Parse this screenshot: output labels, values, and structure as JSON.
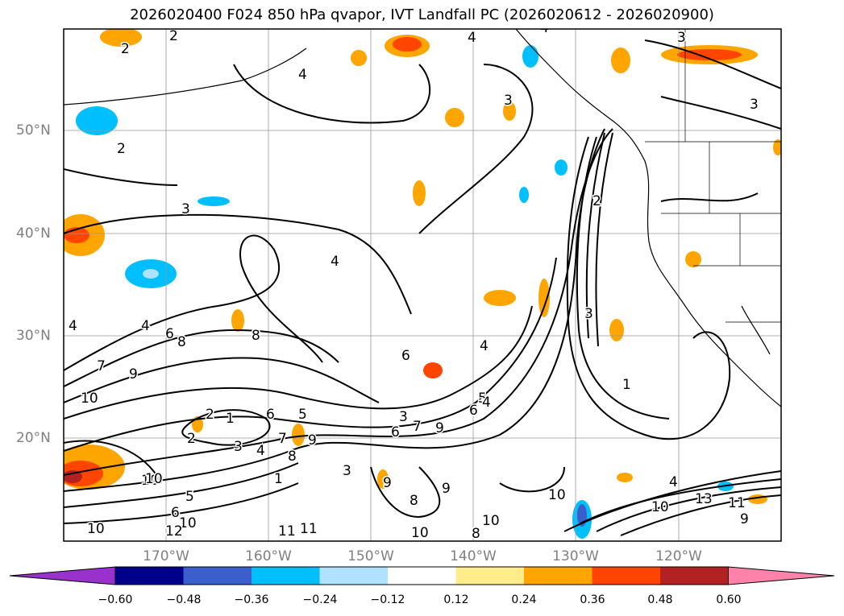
{
  "title": "2026020400 F024 850 hPa qvapor, IVT Landfall PC (2026020612 - 2026020900)",
  "axes": {
    "lat_labels": [
      "50°N",
      "40°N",
      "30°N",
      "20°N"
    ],
    "lon_labels": [
      "170°W",
      "160°W",
      "150°W",
      "140°W",
      "130°W",
      "120°W"
    ]
  },
  "contour_labels": [
    "2",
    "2",
    "4",
    "4",
    "4",
    "3",
    "3",
    "3",
    "2",
    "3",
    "4",
    "4",
    "4",
    "4",
    "6",
    "8",
    "8",
    "6",
    "7",
    "9",
    "10",
    "1",
    "2",
    "3",
    "4",
    "5",
    "6",
    "7",
    "8",
    "9",
    "10",
    "3",
    "6",
    "7",
    "9",
    "5",
    "4",
    "6",
    "1",
    "2",
    "3",
    "10",
    "11",
    "13",
    "10",
    "11",
    "9",
    "8",
    "9",
    "10",
    "10",
    "11",
    "10",
    "12",
    "6",
    "5",
    "4",
    "3",
    "2",
    "1",
    "8",
    "9",
    "10",
    "10"
  ],
  "colorbar": {
    "ticks": [
      "−0.60",
      "−0.48",
      "−0.36",
      "−0.24",
      "−0.12",
      "0.12",
      "0.24",
      "0.36",
      "0.48",
      "0.60"
    ],
    "colors": [
      "#9932cc",
      "#00008b",
      "#3a5fcd",
      "#00bfff",
      "#b0e2ff",
      "#ffffff",
      "#ffec8b",
      "#ffa500",
      "#ff4500",
      "#b22222",
      "#ff82ab"
    ]
  }
}
